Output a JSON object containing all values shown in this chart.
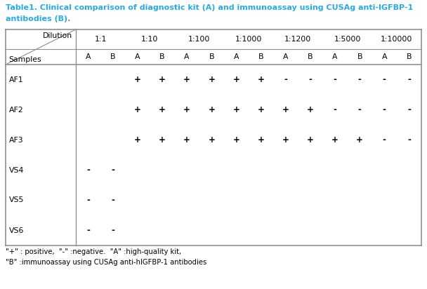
{
  "title_line1": "Table1. Clinical comparison of diagnostic kit (A) and immunoassay using CUSAg anti-IGFBP-1",
  "title_line2": "antibodies (B).",
  "title_color": "#29ABE2",
  "dilutions": [
    "1:1",
    "1:10",
    "1:100",
    "1:1000",
    "1:1200",
    "1:5000",
    "1:10000"
  ],
  "samples": [
    "AF1",
    "AF2",
    "AF3",
    "VS4",
    "VS5",
    "VS6"
  ],
  "table_data": {
    "AF1": [
      "",
      "",
      "+",
      "+",
      "+",
      "+",
      "+",
      "+",
      "-",
      "-",
      "-",
      "-",
      "-",
      "-"
    ],
    "AF2": [
      "",
      "",
      "+",
      "+",
      "+",
      "+",
      "+",
      "+",
      "+",
      "+",
      "-",
      "-",
      "-",
      "-"
    ],
    "AF3": [
      "",
      "",
      "+",
      "+",
      "+",
      "+",
      "+",
      "+",
      "+",
      "+",
      "+",
      "+",
      "-",
      "-"
    ],
    "VS4": [
      "-",
      "-",
      "",
      "",
      "",
      "",
      "",
      "",
      "",
      "",
      "",
      "",
      "",
      ""
    ],
    "VS5": [
      "-",
      "-",
      "",
      "",
      "",
      "",
      "",
      "",
      "",
      "",
      "",
      "",
      "",
      ""
    ],
    "VS6": [
      "-",
      "-",
      "",
      "",
      "",
      "",
      "",
      "",
      "",
      "",
      "",
      "",
      "",
      ""
    ]
  },
  "footer_line1": "\"+\" : positive,  \"-\" :negative.  \"A\" :high-quality kit,",
  "footer_line2": "\"B\" :immunoassay using CUSAg anti-hIGFBP-1 antibodies",
  "bg_color": "#FFFFFF",
  "border_color": "#909090",
  "text_color": "#000000",
  "title_fontsize": 8.0,
  "header_fontsize": 7.8,
  "data_fontsize": 8.5,
  "footer_fontsize": 7.2
}
